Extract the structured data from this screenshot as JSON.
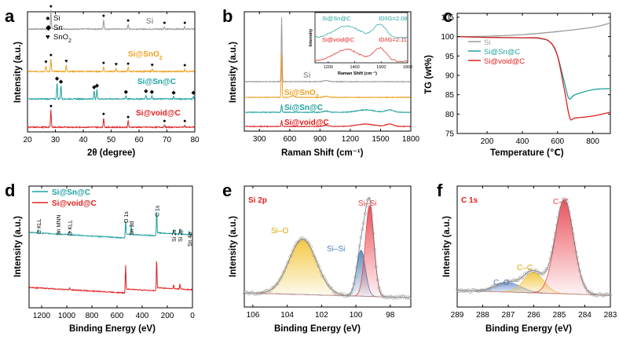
{
  "chart_data": [
    {
      "panel": "a",
      "type": "line",
      "xlabel": "2θ (degree)",
      "ylabel": "Intensity (a.u.)",
      "xlim": [
        20,
        80
      ],
      "xticks": [
        20,
        30,
        40,
        50,
        60,
        70,
        80
      ],
      "legend": [
        {
          "symbol": "●",
          "label": "Si"
        },
        {
          "symbol": "◆",
          "label": "Sn"
        },
        {
          "symbol": "♥",
          "label": "SnO2"
        }
      ],
      "series": [
        {
          "name": "Si",
          "color": "#9a9a9a",
          "peaks": [
            28.4,
            47.3,
            56.1,
            69.1,
            76.4
          ],
          "heights": [
            24,
            12,
            6,
            3,
            3
          ]
        },
        {
          "name": "Si@SnO2",
          "color": "#f0a020",
          "peaks": [
            26.6,
            28.4,
            33.9,
            47.3,
            51.8,
            56.1,
            64.7,
            76.4
          ],
          "heights": [
            7,
            16,
            8,
            6,
            4,
            5,
            3,
            3
          ]
        },
        {
          "name": "Si@Sn@C",
          "color": "#20a0a0",
          "peaks": [
            30.6,
            32.0,
            43.9,
            44.9,
            55.3,
            62.5,
            64.6,
            72.4,
            79.5
          ],
          "heights": [
            21,
            17,
            10,
            12,
            4,
            5,
            4,
            3,
            3
          ]
        },
        {
          "name": "Si@void@C",
          "color": "#e02020",
          "peaks": [
            28.4,
            47.3,
            56.1,
            69.1,
            76.4
          ],
          "heights": [
            22,
            12,
            8,
            3,
            3
          ]
        }
      ],
      "markers": [
        {
          "series": "Si",
          "symbols": [
            [
              "●",
              28.4
            ],
            [
              "●",
              47.3
            ],
            [
              "●",
              56.1
            ],
            [
              "●",
              69.1
            ],
            [
              "●",
              76.4
            ]
          ]
        },
        {
          "series": "Si@SnO2",
          "symbols": [
            [
              "♥",
              26.6
            ],
            [
              "●",
              28.4
            ],
            [
              "♥",
              33.9
            ],
            [
              "●",
              47.3
            ],
            [
              "♥",
              51.8
            ],
            [
              "●",
              56.1
            ],
            [
              "♥",
              64.7
            ],
            [
              "●",
              76.4
            ]
          ]
        },
        {
          "series": "Si@Sn@C",
          "symbols": [
            [
              "◆",
              30.6
            ],
            [
              "◆",
              32.0
            ],
            [
              "◆",
              43.9
            ],
            [
              "◆",
              44.9
            ],
            [
              "◆",
              55.3
            ],
            [
              "◆",
              62.5
            ],
            [
              "◆",
              64.6
            ],
            [
              "◆",
              72.4
            ],
            [
              "◆",
              79.5
            ]
          ]
        },
        {
          "series": "Si@void@C",
          "symbols": [
            [
              "●",
              28.4
            ],
            [
              "●",
              47.3
            ],
            [
              "●",
              56.1
            ],
            [
              "●",
              69.1
            ],
            [
              "●",
              76.4
            ]
          ]
        }
      ]
    },
    {
      "panel": "b",
      "type": "line",
      "xlabel": "Raman Shift (cm⁻¹)",
      "ylabel": "Intensity (a.u.)",
      "xlim": [
        150,
        1800
      ],
      "xticks": [
        300,
        600,
        900,
        1200,
        1500,
        1800
      ],
      "series": [
        {
          "name": "Si",
          "color": "#9a9a9a"
        },
        {
          "name": "Si@SnO2",
          "color": "#f0a020"
        },
        {
          "name": "Si@Sn@C",
          "color": "#20a0a0"
        },
        {
          "name": "Si@void@C",
          "color": "#e02020"
        }
      ],
      "inset": {
        "xlabel": "Raman Shift (cm⁻¹)",
        "ylabel": "Intensity",
        "xlim": [
          1100,
          1800
        ],
        "xticks": [
          1200,
          1400,
          1600,
          1800
        ],
        "series": [
          {
            "name": "Si@Sn@C",
            "color": "#20a0a0",
            "ratio_label": "ID/IG=2.08"
          },
          {
            "name": "Si@void@C",
            "color": "#e02020",
            "ratio_label": "ID/IG=2.11"
          }
        ]
      }
    },
    {
      "panel": "c",
      "type": "line",
      "xlabel": "Temperature (℃)",
      "ylabel": "TG (wt%)",
      "xlim": [
        30,
        900
      ],
      "ylim": [
        75,
        106
      ],
      "xticks": [
        200,
        400,
        600,
        800
      ],
      "yticks": [
        75,
        80,
        85,
        90,
        95,
        100,
        105
      ],
      "series": [
        {
          "name": "Si",
          "color": "#9a9a9a",
          "x": [
            30,
            200,
            400,
            600,
            800,
            900
          ],
          "y": [
            100,
            100.1,
            100.5,
            101.3,
            102.4,
            103.5
          ]
        },
        {
          "name": "Si@Sn@C",
          "color": "#20a0a0",
          "x": [
            30,
            200,
            400,
            500,
            560,
            600,
            640,
            665,
            700,
            800,
            900
          ],
          "y": [
            100,
            99.8,
            99.7,
            99.5,
            98.5,
            95,
            88,
            84,
            85,
            86.3,
            86.6
          ]
        },
        {
          "name": "Si@void@C",
          "color": "#e02020",
          "x": [
            30,
            200,
            400,
            500,
            560,
            600,
            640,
            670,
            700,
            800,
            900
          ],
          "y": [
            100,
            99.8,
            99.7,
            99.6,
            98.5,
            95,
            86,
            79,
            79,
            79.5,
            80.5
          ]
        }
      ]
    },
    {
      "panel": "d",
      "type": "line",
      "xlabel": "Binding Energy (eV)",
      "ylabel": "Intensity (a.u.)",
      "xlim": [
        1300,
        0
      ],
      "xticks": [
        1200,
        1000,
        800,
        600,
        400,
        200,
        0
      ],
      "series": [
        {
          "name": "Si@Sn@C",
          "color": "#20a0a0"
        },
        {
          "name": "Si@void@C",
          "color": "#e02020"
        }
      ],
      "annotations": [
        {
          "label": "C KLL",
          "x": 1225
        },
        {
          "label": "Sn MNN",
          "x": 1068
        },
        {
          "label": "O KLL",
          "x": 978
        },
        {
          "label": "O 1s",
          "x": 532
        },
        {
          "label": "Sn 3d",
          "x": 487
        },
        {
          "label": "C 1s",
          "x": 285
        },
        {
          "label": "Si 2s",
          "x": 150
        },
        {
          "label": "Si 2p",
          "x": 100
        },
        {
          "label": "Sn 4p",
          "x": 26
        }
      ]
    },
    {
      "panel": "e",
      "type": "line",
      "title": "Si 2p",
      "xlabel": "Binding Energy (eV)",
      "ylabel": "Intensity (a.u.)",
      "xlim": [
        106.5,
        96.8
      ],
      "xticks": [
        106,
        104,
        102,
        100,
        98
      ],
      "peaks": [
        {
          "label": "Si–O",
          "center": 103.1,
          "height": 0.58,
          "fwhm": 1.9,
          "color": "#f2c230"
        },
        {
          "label": "Si–Si",
          "center": 99.7,
          "height": 0.48,
          "fwhm": 0.6,
          "color": "#4a7fb5"
        },
        {
          "label": "Si–Si",
          "center": 99.2,
          "height": 0.95,
          "fwhm": 0.6,
          "color": "#e8404a"
        }
      ]
    },
    {
      "panel": "f",
      "type": "line",
      "title": "C 1s",
      "xlabel": "Binding Energy (eV)",
      "ylabel": "Intensity (a.u.)",
      "xlim": [
        289,
        283
      ],
      "xticks": [
        289,
        288,
        287,
        286,
        285,
        284,
        283
      ],
      "peaks": [
        {
          "label": "C–O",
          "center": 287.0,
          "height": 0.1,
          "fwhm": 1.2,
          "color": "#7a9ad5"
        },
        {
          "label": "C–C",
          "center": 286.0,
          "height": 0.22,
          "fwhm": 0.9,
          "color": "#f2c230"
        },
        {
          "label": "C–C",
          "center": 284.8,
          "height": 1.0,
          "fwhm": 0.85,
          "color": "#e8404a"
        }
      ]
    }
  ]
}
